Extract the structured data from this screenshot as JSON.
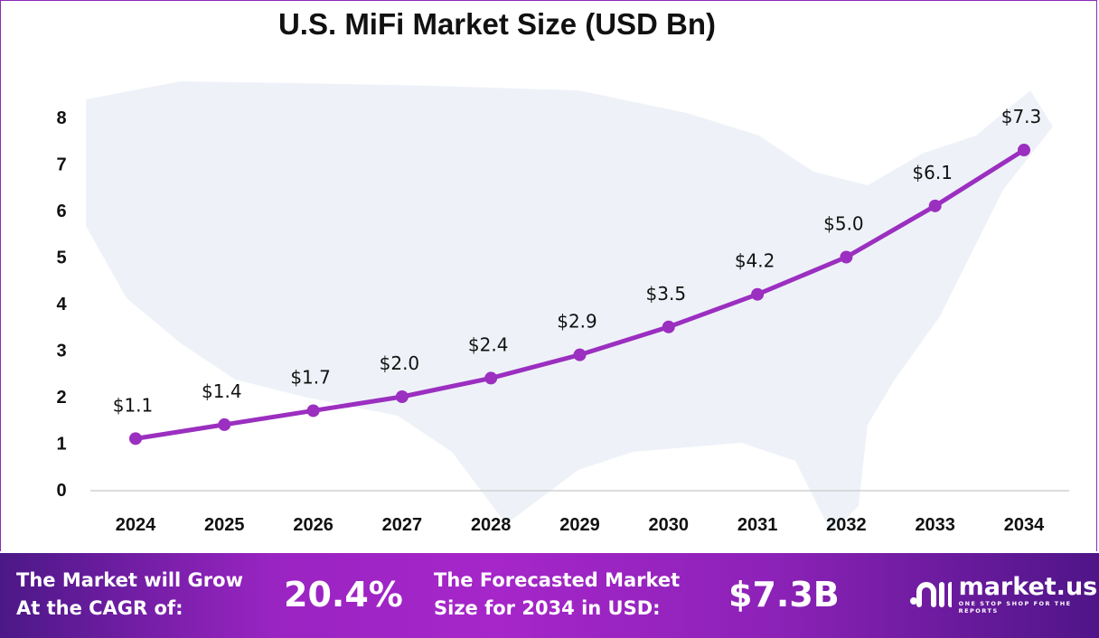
{
  "chart_data": {
    "type": "line",
    "title": "U.S. MiFi Market Size (USD Bn)",
    "categories": [
      "2024",
      "2025",
      "2026",
      "2027",
      "2028",
      "2029",
      "2030",
      "2031",
      "2032",
      "2033",
      "2034"
    ],
    "values": [
      1.1,
      1.4,
      1.7,
      2.0,
      2.4,
      2.9,
      3.5,
      4.2,
      5.0,
      6.1,
      7.3
    ],
    "data_labels": [
      "$1.1",
      "$1.4",
      "$1.7",
      "$2.0",
      "$2.4",
      "$2.9",
      "$3.5",
      "$4.2",
      "$5.0",
      "$6.1",
      "$7.3"
    ],
    "yticks": [
      "0",
      "1",
      "2",
      "3",
      "4",
      "5",
      "6",
      "7",
      "8"
    ],
    "ylim": [
      0,
      8
    ],
    "grid": false,
    "color": "#9b2fc0"
  },
  "footer": {
    "cagr_label_1": "The Market will Grow",
    "cagr_label_2": "At the CAGR of:",
    "cagr_value": "20.4%",
    "forecast_label_1": "The Forecasted Market",
    "forecast_label_2": "Size for 2034 in USD:",
    "forecast_value": "$7.3B",
    "logo_name": "market.us",
    "logo_tagline": "ONE STOP SHOP FOR THE REPORTS"
  }
}
